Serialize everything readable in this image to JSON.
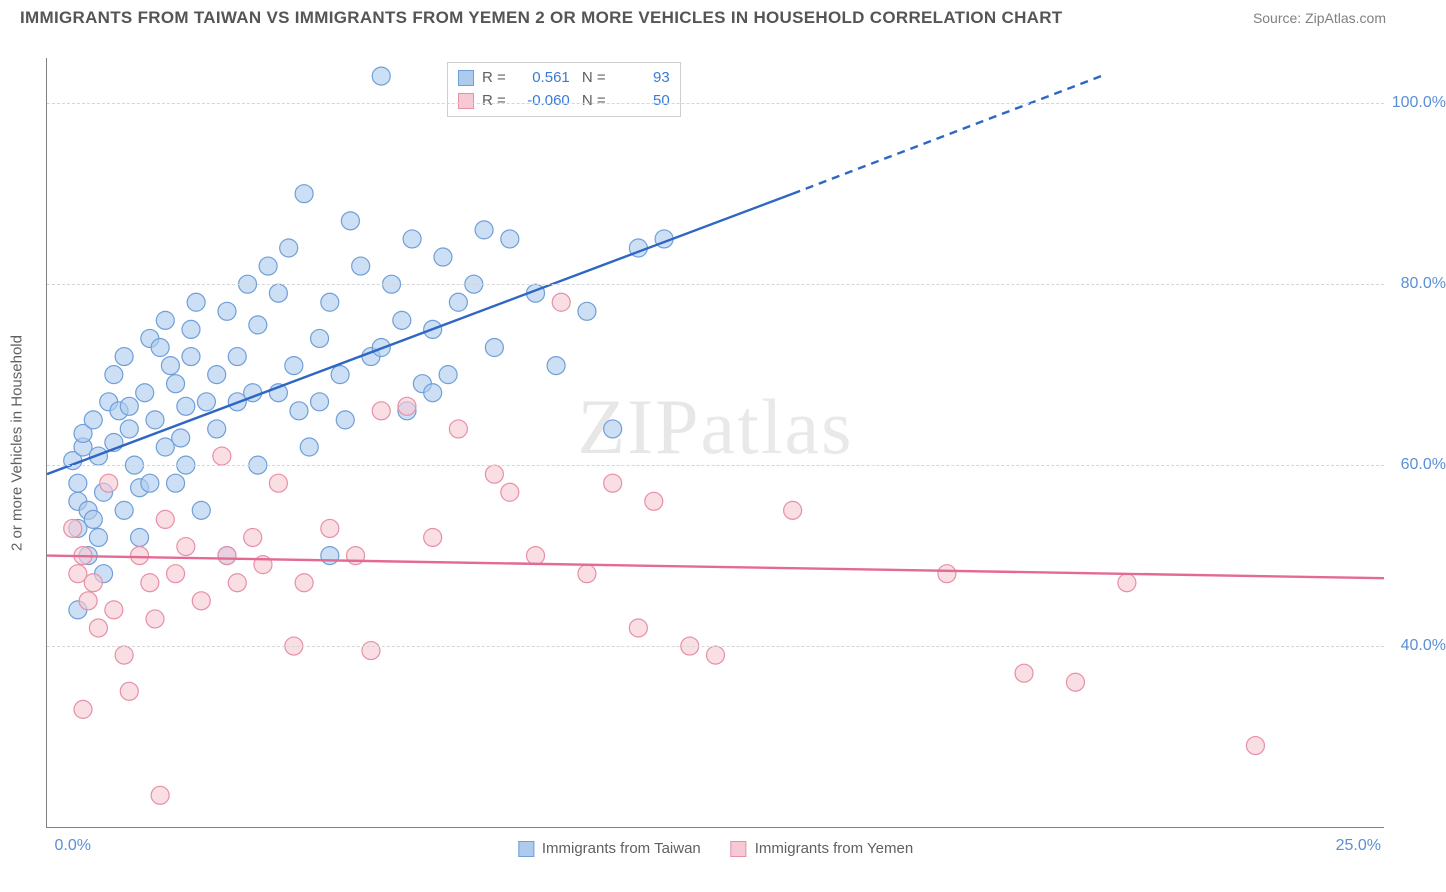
{
  "title": "IMMIGRANTS FROM TAIWAN VS IMMIGRANTS FROM YEMEN 2 OR MORE VEHICLES IN HOUSEHOLD CORRELATION CHART",
  "source": "Source: ZipAtlas.com",
  "watermark": "ZIPatlas",
  "y_axis": {
    "label": "2 or more Vehicles in Household",
    "ticks": [
      40.0,
      60.0,
      80.0,
      100.0
    ],
    "tick_labels": [
      "40.0%",
      "60.0%",
      "80.0%",
      "100.0%"
    ],
    "min": 20.0,
    "max": 105.0
  },
  "x_axis": {
    "ticks": [
      0.0,
      25.0
    ],
    "tick_labels": [
      "0.0%",
      "25.0%"
    ],
    "min": -0.5,
    "max": 25.5
  },
  "series": [
    {
      "name": "Immigrants from Taiwan",
      "color_fill": "#aecbed",
      "color_stroke": "#6f9fd8",
      "line_color": "#2e66c4",
      "r_value": "0.561",
      "n_value": "93",
      "trend": {
        "x1": -0.5,
        "y1": 59.0,
        "x2": 14.0,
        "y2": 90.0,
        "dash_x2": 20.0,
        "dash_y2": 103.0
      },
      "points": [
        [
          0.0,
          60.5
        ],
        [
          0.1,
          56.0
        ],
        [
          0.2,
          62.0
        ],
        [
          0.1,
          58.0
        ],
        [
          0.2,
          63.5
        ],
        [
          0.4,
          65.0
        ],
        [
          0.5,
          61.0
        ],
        [
          0.6,
          57.0
        ],
        [
          0.3,
          55.0
        ],
        [
          0.1,
          44.0
        ],
        [
          0.1,
          53.0
        ],
        [
          0.4,
          54.0
        ],
        [
          0.7,
          67.0
        ],
        [
          0.8,
          70.0
        ],
        [
          0.9,
          66.0
        ],
        [
          1.0,
          72.0
        ],
        [
          1.1,
          64.0
        ],
        [
          1.2,
          60.0
        ],
        [
          1.3,
          57.5
        ],
        [
          1.4,
          68.0
        ],
        [
          1.5,
          74.0
        ],
        [
          1.6,
          65.0
        ],
        [
          1.7,
          73.0
        ],
        [
          1.8,
          76.0
        ],
        [
          1.9,
          71.0
        ],
        [
          2.0,
          69.0
        ],
        [
          2.1,
          63.0
        ],
        [
          2.2,
          66.5
        ],
        [
          2.3,
          75.0
        ],
        [
          2.4,
          78.0
        ],
        [
          2.6,
          67.0
        ],
        [
          2.8,
          70.0
        ],
        [
          3.0,
          77.0
        ],
        [
          3.2,
          72.0
        ],
        [
          3.4,
          80.0
        ],
        [
          3.5,
          68.0
        ],
        [
          3.6,
          75.5
        ],
        [
          3.8,
          82.0
        ],
        [
          4.0,
          79.0
        ],
        [
          4.2,
          84.0
        ],
        [
          4.4,
          66.0
        ],
        [
          4.5,
          90.0
        ],
        [
          4.8,
          74.0
        ],
        [
          5.0,
          78.0
        ],
        [
          5.2,
          70.0
        ],
        [
          5.4,
          87.0
        ],
        [
          5.6,
          82.0
        ],
        [
          5.8,
          72.0
        ],
        [
          6.0,
          103.0
        ],
        [
          6.2,
          80.0
        ],
        [
          6.4,
          76.0
        ],
        [
          6.6,
          85.0
        ],
        [
          6.8,
          69.0
        ],
        [
          7.0,
          75.0
        ],
        [
          7.2,
          83.0
        ],
        [
          7.5,
          78.0
        ],
        [
          7.8,
          80.0
        ],
        [
          8.0,
          86.0
        ],
        [
          8.2,
          73.0
        ],
        [
          8.5,
          85.0
        ],
        [
          9.0,
          79.0
        ],
        [
          9.4,
          71.0
        ],
        [
          10.0,
          77.0
        ],
        [
          10.5,
          64.0
        ],
        [
          11.0,
          84.0
        ],
        [
          11.5,
          85.0
        ],
        [
          1.0,
          55.0
        ],
        [
          1.3,
          52.0
        ],
        [
          2.0,
          58.0
        ],
        [
          2.5,
          55.0
        ],
        [
          3.0,
          50.0
        ],
        [
          0.3,
          50.0
        ],
        [
          0.5,
          52.0
        ],
        [
          0.6,
          48.0
        ],
        [
          1.8,
          62.0
        ],
        [
          2.2,
          60.0
        ],
        [
          2.8,
          64.0
        ],
        [
          3.2,
          67.0
        ],
        [
          4.0,
          68.0
        ],
        [
          4.3,
          71.0
        ],
        [
          4.8,
          67.0
        ],
        [
          5.3,
          65.0
        ],
        [
          6.5,
          66.0
        ],
        [
          7.0,
          68.0
        ],
        [
          3.6,
          60.0
        ],
        [
          4.6,
          62.0
        ],
        [
          5.0,
          50.0
        ],
        [
          0.8,
          62.5
        ],
        [
          1.5,
          58.0
        ],
        [
          2.3,
          72.0
        ],
        [
          1.1,
          66.5
        ],
        [
          6.0,
          73.0
        ],
        [
          7.3,
          70.0
        ]
      ]
    },
    {
      "name": "Immigrants from Yemen",
      "color_fill": "#f6c9d4",
      "color_stroke": "#e88fa8",
      "line_color": "#e36a92",
      "r_value": "-0.060",
      "n_value": "50",
      "trend": {
        "x1": -0.5,
        "y1": 50.0,
        "x2": 25.5,
        "y2": 47.5
      },
      "points": [
        [
          0.0,
          53.0
        ],
        [
          0.1,
          48.0
        ],
        [
          0.2,
          50.0
        ],
        [
          0.3,
          45.0
        ],
        [
          0.4,
          47.0
        ],
        [
          0.5,
          42.0
        ],
        [
          0.7,
          58.0
        ],
        [
          0.8,
          44.0
        ],
        [
          1.0,
          39.0
        ],
        [
          1.1,
          35.0
        ],
        [
          1.3,
          50.0
        ],
        [
          1.5,
          47.0
        ],
        [
          1.6,
          43.0
        ],
        [
          1.7,
          23.5
        ],
        [
          1.8,
          54.0
        ],
        [
          2.0,
          48.0
        ],
        [
          2.2,
          51.0
        ],
        [
          2.5,
          45.0
        ],
        [
          2.9,
          61.0
        ],
        [
          3.0,
          50.0
        ],
        [
          3.2,
          47.0
        ],
        [
          3.5,
          52.0
        ],
        [
          3.7,
          49.0
        ],
        [
          4.0,
          58.0
        ],
        [
          4.3,
          40.0
        ],
        [
          4.5,
          47.0
        ],
        [
          5.0,
          53.0
        ],
        [
          5.5,
          50.0
        ],
        [
          5.8,
          39.5
        ],
        [
          6.0,
          66.0
        ],
        [
          6.5,
          66.5
        ],
        [
          7.0,
          52.0
        ],
        [
          7.5,
          64.0
        ],
        [
          8.2,
          59.0
        ],
        [
          8.5,
          57.0
        ],
        [
          9.0,
          50.0
        ],
        [
          9.5,
          78.0
        ],
        [
          10.0,
          48.0
        ],
        [
          10.5,
          58.0
        ],
        [
          11.0,
          42.0
        ],
        [
          11.3,
          56.0
        ],
        [
          12.0,
          40.0
        ],
        [
          12.5,
          39.0
        ],
        [
          14.0,
          55.0
        ],
        [
          17.0,
          48.0
        ],
        [
          18.5,
          37.0
        ],
        [
          19.5,
          36.0
        ],
        [
          20.5,
          47.0
        ],
        [
          23.0,
          29.0
        ],
        [
          0.2,
          33.0
        ]
      ]
    }
  ],
  "legend_bottom": [
    {
      "label": "Immigrants from Taiwan",
      "fill": "#aecbed",
      "stroke": "#6f9fd8"
    },
    {
      "label": "Immigrants from Yemen",
      "fill": "#f6c9d4",
      "stroke": "#e88fa8"
    }
  ],
  "marker_radius": 9,
  "marker_opacity": 0.62,
  "line_width": 2.4,
  "grid_color": "#d6d6d6",
  "background": "#ffffff"
}
